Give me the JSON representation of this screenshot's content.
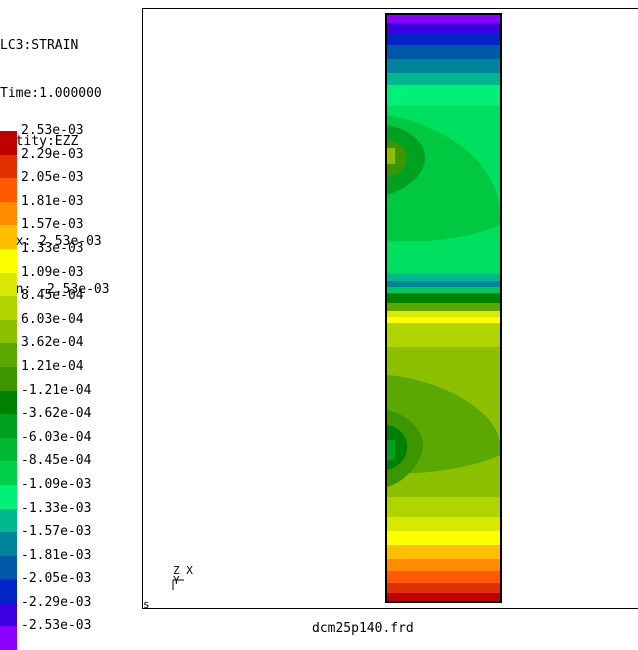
{
  "info": {
    "line1": "LC3:STRAIN",
    "line2": "Time:1.000000",
    "line3": "entity:EZZ",
    "max": "max: 2.53e-03",
    "min": "min: -2.53e-03"
  },
  "legend": [
    {
      "label": "2.53e-03",
      "color": "#c00000"
    },
    {
      "label": "2.29e-03",
      "color": "#e03000"
    },
    {
      "label": "2.05e-03",
      "color": "#ff5a00"
    },
    {
      "label": "1.81e-03",
      "color": "#ff8c00"
    },
    {
      "label": "1.57e-03",
      "color": "#ffbe00"
    },
    {
      "label": "1.33e-03",
      "color": "#ffff00"
    },
    {
      "label": "1.09e-03",
      "color": "#d8e800"
    },
    {
      "label": "8.45e-04",
      "color": "#b0d400"
    },
    {
      "label": "6.03e-04",
      "color": "#8cc000"
    },
    {
      "label": "3.62e-04",
      "color": "#5aa800"
    },
    {
      "label": "1.21e-04",
      "color": "#3c9600"
    },
    {
      "label": "-1.21e-04",
      "color": "#008000"
    },
    {
      "label": "-3.62e-04",
      "color": "#00a020"
    },
    {
      "label": "-6.03e-04",
      "color": "#00b832"
    },
    {
      "label": "-8.45e-04",
      "color": "#00d048"
    },
    {
      "label": "-1.09e-03",
      "color": "#00f078"
    },
    {
      "label": "-1.33e-03",
      "color": "#00b890"
    },
    {
      "label": "-1.57e-03",
      "color": "#00849c"
    },
    {
      "label": "-1.81e-03",
      "color": "#0058a8"
    },
    {
      "label": "-2.05e-03",
      "color": "#0024c8"
    },
    {
      "label": "-2.29e-03",
      "color": "#3c00e0"
    },
    {
      "label": "-2.53e-03",
      "color": "#8c00ff"
    }
  ],
  "axes_label": "Z X\nY",
  "corner_label": "s",
  "filename": "dcm25p140.frd"
}
